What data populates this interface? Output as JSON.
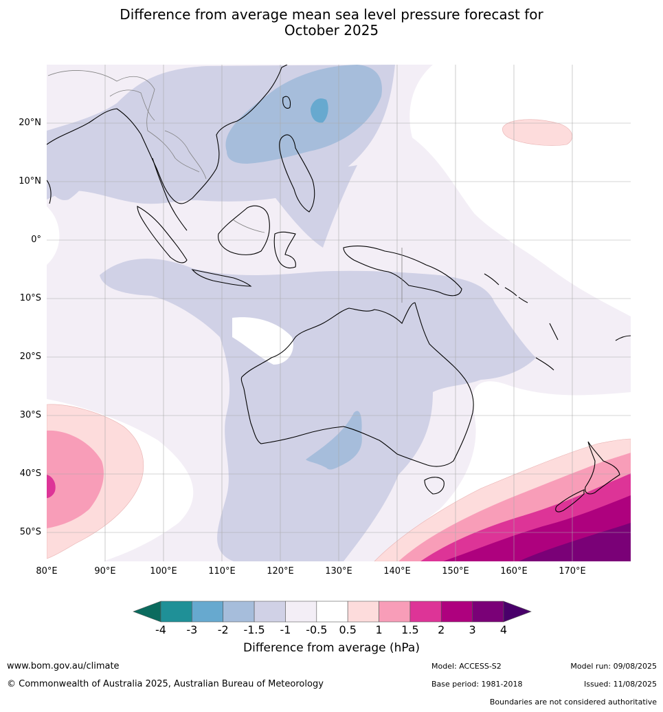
{
  "title_line1": "Difference from average mean sea level pressure forecast for",
  "title_line2": "October 2025",
  "lat_labels": [
    "20°N",
    "10°N",
    "0°",
    "10°S",
    "20°S",
    "30°S",
    "40°S",
    "50°S"
  ],
  "lon_labels": [
    "80°E",
    "90°E",
    "100°E",
    "110°E",
    "120°E",
    "130°E",
    "140°E",
    "150°E",
    "160°E",
    "170°E"
  ],
  "colorbar": {
    "ticks": [
      "-4",
      "-3",
      "-2",
      "-1.5",
      "-1",
      "-0.5",
      "0.5",
      "1",
      "1.5",
      "2",
      "3",
      "4"
    ],
    "colors": [
      "#0b6b5e",
      "#1f9097",
      "#67a9cf",
      "#a6bddb",
      "#d0d1e6",
      "#f3eef6",
      "#ffffff",
      "#fddcdc",
      "#f89db8",
      "#dd3497",
      "#ae017e",
      "#7a0177",
      "#49006a"
    ],
    "label": "Difference from average (hPa)"
  },
  "footer": {
    "url": "www.bom.gov.au/climate",
    "copyright": "© Commonwealth of Australia 2025, Australian Bureau of Meteorology",
    "model": "Model: ACCESS-S2",
    "base_period": "Base period: 1981-2018",
    "model_run": "Model run: 09/08/2025",
    "issued": "Issued: 11/08/2025",
    "disclaimer": "Boundaries are not considered authoritative"
  }
}
